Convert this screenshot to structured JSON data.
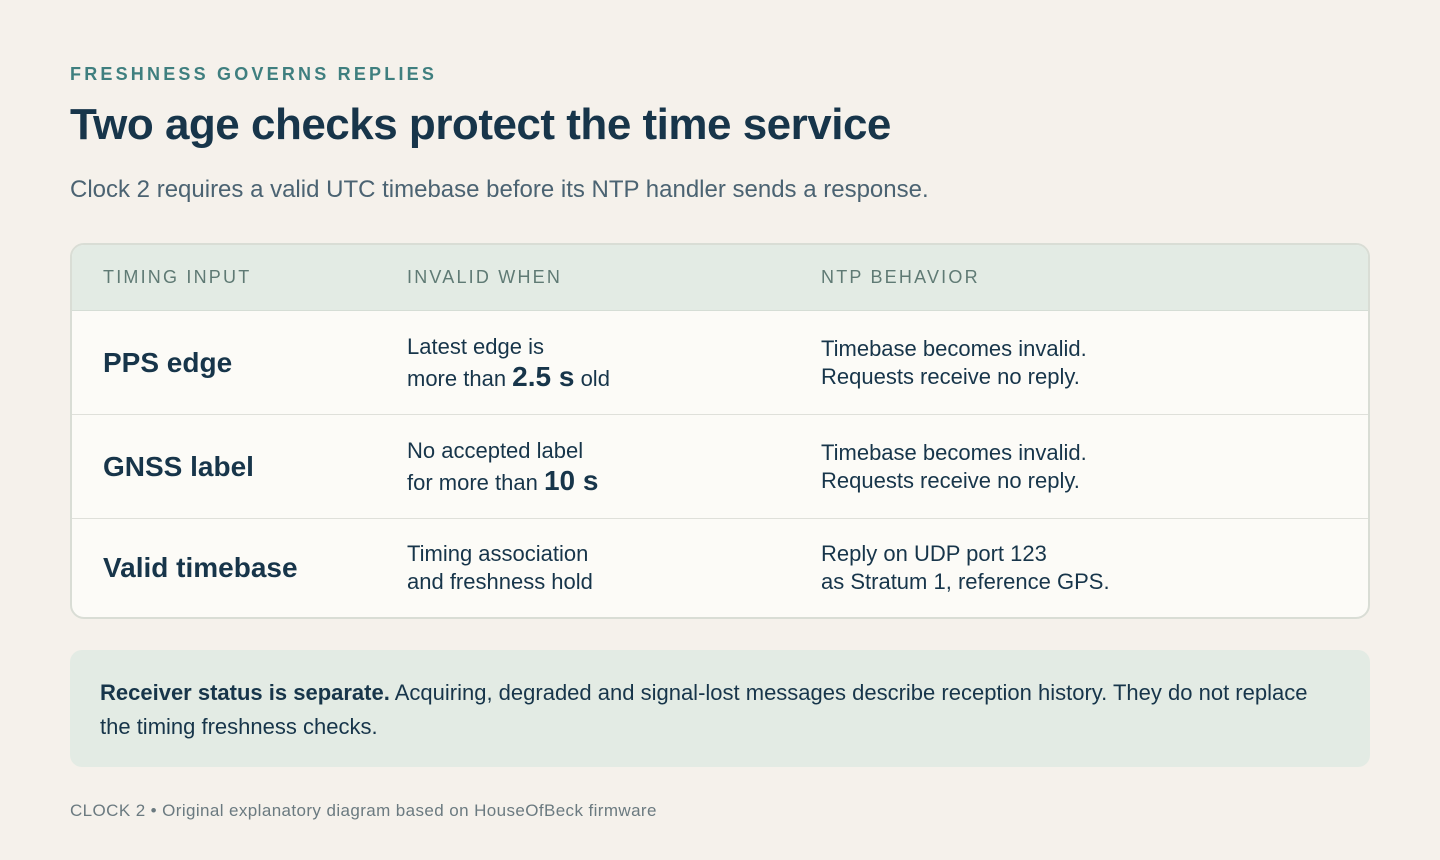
{
  "eyebrow": "FRESHNESS GOVERNS REPLIES",
  "title": "Two age checks protect the time service",
  "subtitle": "Clock 2 requires a valid UTC timebase before its NTP handler sends a response.",
  "table": {
    "headers": [
      "TIMING INPUT",
      "INVALID WHEN",
      "NTP BEHAVIOR"
    ],
    "rows": [
      {
        "name": "PPS edge",
        "invalid_line1": "Latest edge is",
        "invalid_pre": "more than ",
        "invalid_em": "2.5 s",
        "invalid_post": " old",
        "behavior_line1": "Timebase becomes invalid.",
        "behavior_line2": "Requests receive no reply."
      },
      {
        "name": "GNSS label",
        "invalid_line1": "No accepted label",
        "invalid_pre": "for more than ",
        "invalid_em": "10 s",
        "behavior_line1": "Timebase becomes invalid.",
        "behavior_line2": "Requests receive no reply."
      },
      {
        "name": "Valid timebase",
        "invalid_line1": "Timing association",
        "invalid_line2": "and freshness hold",
        "behavior_line1": "Reply on UDP port 123",
        "behavior_line2": "as Stratum 1, reference GPS."
      }
    ]
  },
  "note": {
    "bold": "Receiver status is separate.",
    "text": " Acquiring, degraded and signal-lost messages describe reception history. They do not replace the timing freshness checks."
  },
  "footer": "CLOCK 2 • Original explanatory diagram based on HouseOfBeck firmware"
}
